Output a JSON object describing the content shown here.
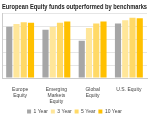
{
  "chart_data": {
    "type": "bar",
    "title": "European Equity funds outperformed by benchmarks",
    "categories": [
      "Europe Equity",
      "Emerging Markets Equity",
      "Global Equity",
      "U.S. Equity"
    ],
    "series": [
      {
        "name": "1 Year",
        "color": "#a6a6a6",
        "values": [
          80,
          75,
          58,
          85
        ]
      },
      {
        "name": "3 Year",
        "color": "#ffe699",
        "values": [
          84,
          80,
          78,
          90
        ]
      },
      {
        "name": "5 Year",
        "color": "#ffd966",
        "values": [
          87,
          86,
          85,
          94
        ]
      },
      {
        "name": "10 Year",
        "color": "#ffc000",
        "values": [
          86,
          88,
          88,
          93
        ]
      }
    ],
    "ylim": [
      0,
      100
    ],
    "yticks": [
      0,
      20,
      40,
      60,
      80,
      100
    ],
    "grid": true,
    "legend": "bottom",
    "tick_labels": "x"
  }
}
